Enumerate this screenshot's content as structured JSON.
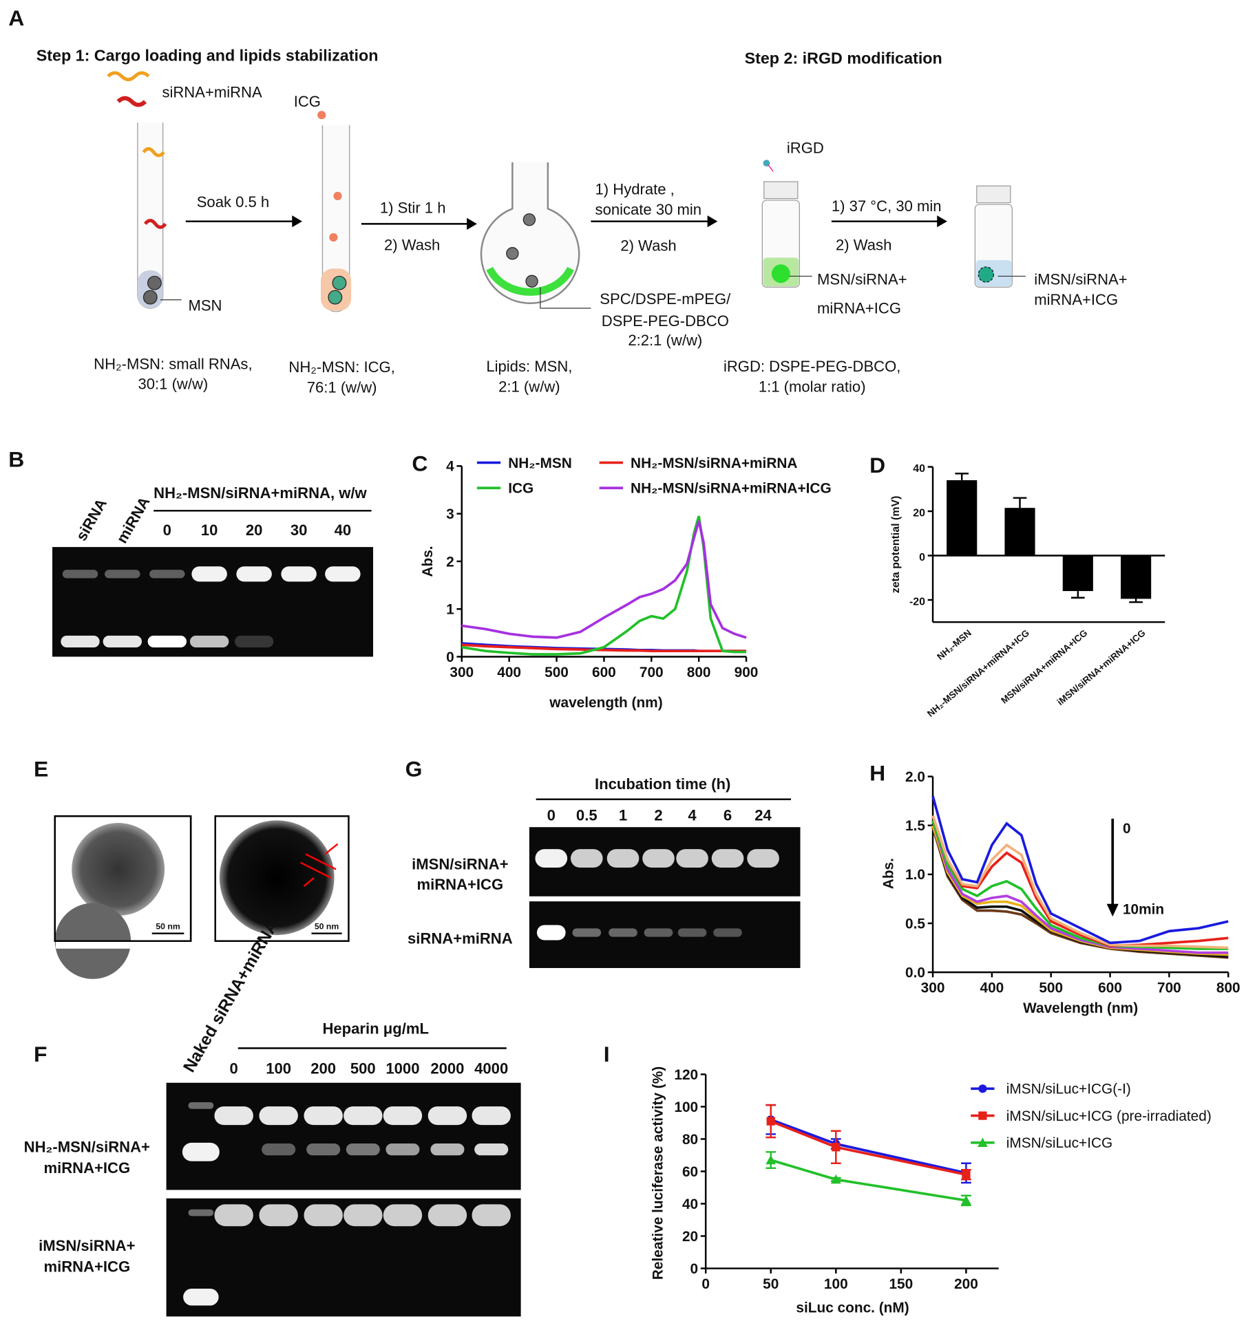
{
  "schematic": {
    "label": "A",
    "step1": "Step 1: Cargo loading and lipids stabilization",
    "step2": "Step 2: iRGD modification",
    "rna": "siRNA+miRNA",
    "icg": "ICG",
    "soak": "Soak 0.5 h",
    "msn": "MSN",
    "stir": "1) Stir 1 h",
    "wash1": "2) Wash",
    "hydrate": "1) Hydrate ,",
    "sonicate": "sonicate 30 min",
    "wash2": "2) Wash",
    "lipid_mix": [
      "SPC/DSPE-mPEG/",
      "DSPE-PEG-DBCO",
      "2:2:1 (w/w)"
    ],
    "irgd": "iRGD",
    "incubate": "1) 37 °C, 30 min",
    "wash3": "2) Wash",
    "product1": [
      "MSN/siRNA+",
      "miRNA+ICG"
    ],
    "product2": [
      "iMSN/siRNA+",
      "miRNA+ICG"
    ],
    "captions": [
      [
        "NH₂-MSN:  small RNAs,",
        "30:1 (w/w)"
      ],
      [
        "NH₂-MSN:  ICG,",
        "76:1 (w/w)"
      ],
      [
        "Lipids: MSN,",
        "2:1 (w/w)"
      ],
      [
        "iRGD: DSPE-PEG-DBCO,",
        "1:1 (molar ratio)"
      ]
    ]
  },
  "gel_b": {
    "label": "B",
    "lanes": [
      "siRNA",
      "miRNA"
    ],
    "group": "NH₂-MSN/siRNA+miRNA, w/w",
    "ratios": [
      0,
      10,
      20,
      30,
      40
    ]
  },
  "tem": {
    "label": "E",
    "scale_bars": [
      "50 nm",
      "50 nm"
    ]
  },
  "gel_g": {
    "label": "G",
    "group": "Incubation time (h)",
    "times": [
      0,
      0.5,
      1,
      2,
      4,
      6,
      24
    ],
    "rows": [
      [
        "iMSN/siRNA+",
        "miRNA+ICG"
      ],
      [
        "siRNA+miRNA"
      ]
    ]
  },
  "gel_f": {
    "label": "F",
    "naked": "Naked siRNA+miRNA",
    "group": "Heparin μg/mL",
    "concentrations": [
      0,
      100,
      200,
      500,
      1000,
      2000,
      4000
    ],
    "rows": [
      [
        "NH₂-MSN/siRNA+",
        "miRNA+ICG"
      ],
      [
        "iMSN/siRNA+",
        "miRNA+ICG"
      ]
    ]
  },
  "chart_data": [
    {
      "type": "line",
      "label": "C",
      "y_label": "Abs.",
      "x_label": "wavelength (nm)",
      "xlim": [
        300,
        900
      ],
      "xticks": [
        300,
        400,
        500,
        600,
        700,
        800,
        900
      ],
      "ylim": [
        0,
        4
      ],
      "yticks": [
        0,
        1,
        2,
        3,
        4
      ],
      "x": [
        300,
        350,
        400,
        450,
        500,
        550,
        600,
        650,
        675,
        700,
        725,
        750,
        775,
        790,
        800,
        810,
        825,
        850,
        875,
        900
      ],
      "series": [
        {
          "name": "NH₂-MSN",
          "color": "#1a1adf",
          "values": [
            0.28,
            0.25,
            0.22,
            0.2,
            0.18,
            0.17,
            0.16,
            0.15,
            0.14,
            0.14,
            0.13,
            0.13,
            0.13,
            0.13,
            0.12,
            0.12,
            0.12,
            0.12,
            0.12,
            0.12
          ]
        },
        {
          "name": "NH₂-MSN/siRNA+miRNA",
          "color": "#e8201a",
          "values": [
            0.25,
            0.22,
            0.2,
            0.18,
            0.16,
            0.15,
            0.14,
            0.13,
            0.13,
            0.12,
            0.12,
            0.12,
            0.12,
            0.12,
            0.12,
            0.12,
            0.12,
            0.12,
            0.12,
            0.12
          ]
        },
        {
          "name": "ICG",
          "color": "#22c02a",
          "values": [
            0.2,
            0.12,
            0.08,
            0.05,
            0.05,
            0.07,
            0.2,
            0.55,
            0.75,
            0.85,
            0.8,
            1.0,
            1.8,
            2.6,
            2.95,
            2.3,
            0.8,
            0.12,
            0.1,
            0.1
          ]
        },
        {
          "name": "NH₂-MSN/siRNA+miRNA+ICG",
          "color": "#a630e0",
          "values": [
            0.65,
            0.58,
            0.48,
            0.42,
            0.4,
            0.52,
            0.82,
            1.1,
            1.25,
            1.32,
            1.42,
            1.6,
            1.95,
            2.5,
            2.85,
            2.4,
            1.1,
            0.6,
            0.48,
            0.4
          ]
        }
      ]
    },
    {
      "type": "bar",
      "label": "D",
      "y_label": "zeta potential (mV)",
      "ylim": [
        -30,
        40
      ],
      "yticks": [
        -20,
        0,
        20,
        40
      ],
      "color": "#000000",
      "categories": [
        "NH₂-MSN",
        "NH₂-MSN/siRNA+miRNA+ICG",
        "MSN/siRNA+miRNA+ICG",
        "iMSN/siRNA+miRNA+ICG"
      ],
      "values": [
        34,
        21.5,
        -16,
        -19.5
      ],
      "errors": [
        3,
        4.5,
        3,
        1.5
      ]
    },
    {
      "type": "line",
      "label": "H",
      "y_label": "Abs.",
      "x_label": "Wavelength (nm)",
      "xlim": [
        300,
        800
      ],
      "xticks": [
        300,
        400,
        500,
        600,
        700,
        800
      ],
      "ylim": [
        0,
        2
      ],
      "yticks": [
        {
          "value": 0,
          "label": "0.0"
        },
        {
          "value": 0.5,
          "label": "0.5"
        },
        {
          "value": 1,
          "label": "1.0"
        },
        {
          "value": 1.5,
          "label": "1.5"
        },
        {
          "value": 2,
          "label": "2.0"
        }
      ],
      "annotations": [
        "0",
        "10min"
      ],
      "x": [
        300,
        325,
        350,
        375,
        400,
        425,
        450,
        475,
        500,
        550,
        600,
        650,
        700,
        750,
        800
      ],
      "series": [
        {
          "color": "#6b3a1a",
          "values": [
            1.48,
            0.98,
            0.74,
            0.63,
            0.63,
            0.62,
            0.59,
            0.5,
            0.4,
            0.3,
            0.24,
            0.21,
            0.19,
            0.17,
            0.15
          ]
        },
        {
          "color": "#111111",
          "values": [
            1.5,
            1.0,
            0.76,
            0.66,
            0.67,
            0.67,
            0.63,
            0.52,
            0.42,
            0.31,
            0.25,
            0.22,
            0.2,
            0.18,
            0.16
          ]
        },
        {
          "color": "#e8b21a",
          "values": [
            1.5,
            1.02,
            0.78,
            0.7,
            0.72,
            0.72,
            0.68,
            0.55,
            0.43,
            0.32,
            0.25,
            0.23,
            0.21,
            0.19,
            0.18
          ]
        },
        {
          "color": "#b23fe0",
          "values": [
            1.55,
            1.05,
            0.8,
            0.72,
            0.76,
            0.78,
            0.72,
            0.58,
            0.45,
            0.33,
            0.26,
            0.24,
            0.22,
            0.2,
            0.2
          ]
        },
        {
          "color": "#22c02a",
          "values": [
            1.55,
            1.1,
            0.85,
            0.78,
            0.88,
            0.93,
            0.85,
            0.65,
            0.48,
            0.35,
            0.27,
            0.26,
            0.25,
            0.24,
            0.24
          ]
        },
        {
          "color": "#e8201a",
          "values": [
            1.6,
            1.15,
            0.88,
            0.86,
            1.08,
            1.22,
            1.12,
            0.76,
            0.52,
            0.38,
            0.27,
            0.28,
            0.3,
            0.32,
            0.35
          ]
        },
        {
          "color": "#f2b27a",
          "values": [
            1.6,
            1.15,
            0.9,
            0.88,
            1.15,
            1.3,
            1.2,
            0.8,
            0.55,
            0.4,
            0.28,
            0.27,
            0.27,
            0.26,
            0.25
          ]
        },
        {
          "color": "#1a1adf",
          "values": [
            1.8,
            1.25,
            0.95,
            0.92,
            1.3,
            1.52,
            1.4,
            0.9,
            0.6,
            0.45,
            0.3,
            0.32,
            0.42,
            0.45,
            0.52
          ]
        }
      ]
    },
    {
      "type": "line",
      "label": "I",
      "y_label": "Releative luciferase activity (%)",
      "x_label": "siLuc conc. (nM)",
      "xlim": [
        0,
        225
      ],
      "xticks": [
        0,
        50,
        100,
        150,
        200
      ],
      "ylim": [
        0,
        120
      ],
      "yticks": [
        0,
        20,
        40,
        60,
        80,
        100,
        120
      ],
      "x": [
        50,
        100,
        200
      ],
      "series": [
        {
          "name": "iMSN/siLuc+ICG(-I)",
          "color": "#1a1adf",
          "marker": "circle",
          "values": [
            92,
            77,
            59
          ],
          "errors": [
            9,
            3,
            6
          ]
        },
        {
          "name": "iMSN/siLuc+ICG (pre-irradiated)",
          "color": "#e8201a",
          "marker": "square",
          "values": [
            91,
            75,
            58
          ],
          "errors": [
            10,
            10,
            3
          ]
        },
        {
          "name": "iMSN/siLuc+ICG",
          "color": "#22c02a",
          "marker": "triangle",
          "values": [
            67,
            55,
            42
          ],
          "errors": [
            5,
            1,
            3
          ]
        }
      ]
    }
  ]
}
